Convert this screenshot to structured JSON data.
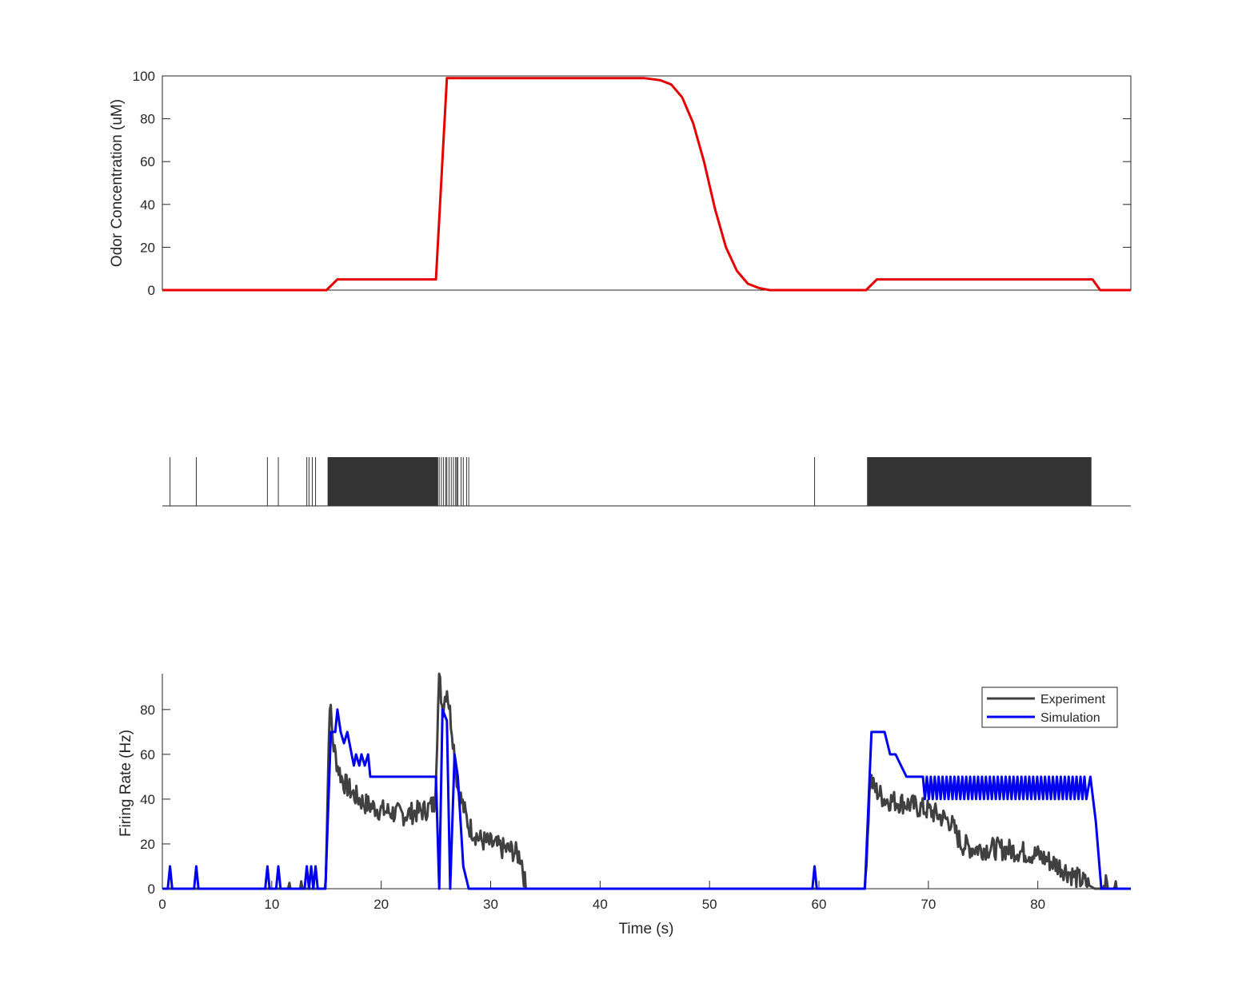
{
  "chart_data": [
    {
      "type": "line",
      "panel": "odor",
      "ylabel": "Odor Concentration (uM)",
      "xlabel": "",
      "xlim": [
        0,
        88.5
      ],
      "ylim": [
        0,
        100
      ],
      "yticks": [
        0,
        20,
        40,
        60,
        80,
        100
      ],
      "grid": false,
      "box": true,
      "colors": {
        "line": "#e60000"
      },
      "series": [
        {
          "x": [
            0,
            11.3,
            15.0,
            16.0,
            25.0,
            26.0,
            37.0,
            44.0,
            45.5,
            46.5,
            47.5,
            48.5,
            49.5,
            50.5,
            51.5,
            52.5,
            53.5,
            54.5,
            55.5,
            58.0,
            64.3,
            65.3,
            84.0,
            85.0,
            85.7,
            88.5
          ],
          "y": [
            0,
            0,
            0,
            5,
            5,
            99,
            99,
            99,
            98,
            96,
            90,
            78,
            60,
            38,
            20,
            9,
            3,
            1,
            0,
            0,
            0,
            5,
            5,
            5,
            0,
            0
          ]
        }
      ]
    },
    {
      "type": "raster",
      "panel": "spikes",
      "xlim": [
        0,
        88.5
      ],
      "colors": {
        "spike": "#333333"
      },
      "spike_times": [
        0.7,
        3.1,
        9.6,
        10.6,
        13.2,
        13.4,
        13.7,
        14.0,
        25.3,
        25.5,
        25.7,
        25.9,
        26.0,
        26.2,
        26.4,
        26.6,
        26.8,
        26.9,
        27.0,
        27.3,
        27.5,
        27.8,
        28.0,
        59.6
      ],
      "bursts": [
        [
          15.1,
          25.2
        ],
        [
          64.4,
          84.9
        ]
      ]
    },
    {
      "type": "line",
      "panel": "rate",
      "xlabel": "Time (s)",
      "ylabel": "Firing Rate (Hz)",
      "xlim": [
        0,
        88.5
      ],
      "ylim": [
        0,
        96
      ],
      "xticks": [
        0,
        10,
        20,
        30,
        40,
        50,
        60,
        70,
        80
      ],
      "yticks": [
        0,
        20,
        40,
        60,
        80
      ],
      "grid": false,
      "legend": "top-right",
      "series": [
        {
          "name": "Experiment",
          "color": "#404040",
          "x": [
            0,
            11.5,
            11.6,
            11.7,
            12.6,
            12.7,
            12.8,
            14.9,
            15.3,
            15.6,
            16.0,
            16.5,
            17.5,
            18.5,
            20.0,
            22.0,
            24.0,
            24.9,
            25.3,
            25.6,
            26.0,
            26.5,
            27.0,
            28.0,
            29.0,
            30.0,
            31.0,
            32.0,
            32.8,
            33.2,
            64.2,
            64.7,
            65.0,
            66.0,
            68.0,
            70.0,
            72.0,
            73.0,
            74.0,
            76.0,
            78.0,
            80.0,
            82.0,
            83.5,
            84.5,
            85.2,
            86.0,
            86.1,
            86.3,
            86.4,
            87.0,
            87.1,
            87.2,
            88.5
          ],
          "y": [
            0,
            0,
            3,
            0,
            0,
            3,
            0,
            0,
            84,
            65,
            55,
            48,
            42,
            38,
            35,
            33,
            35,
            38,
            95,
            80,
            90,
            70,
            45,
            28,
            22,
            20,
            18,
            17,
            14,
            0,
            0,
            50,
            45,
            40,
            38,
            35,
            30,
            20,
            18,
            18,
            17,
            15,
            10,
            5,
            2,
            0,
            0,
            3,
            3,
            0,
            0,
            3,
            0,
            0
          ],
          "noise": 5
        },
        {
          "name": "Simulation",
          "color": "#0000ee",
          "x": [
            0,
            0.5,
            0.7,
            0.9,
            2.9,
            3.1,
            3.3,
            9.4,
            9.6,
            9.8,
            10.4,
            10.6,
            10.8,
            13.0,
            13.2,
            13.4,
            13.6,
            13.8,
            14.0,
            14.2,
            14.9,
            15.4,
            15.8,
            16.0,
            16.3,
            16.6,
            16.9,
            17.3,
            17.5,
            17.7,
            18.0,
            18.2,
            18.5,
            18.8,
            19.0,
            24.0,
            25.0,
            25.3,
            25.6,
            26.0,
            26.3,
            26.7,
            27.0,
            27.5,
            28.0,
            28.4,
            59.4,
            59.6,
            59.8,
            64.2,
            64.8,
            66.0,
            66.5,
            67.0,
            67.5,
            68.0,
            84.8,
            85.3,
            85.8,
            88.5
          ],
          "y": [
            0,
            0,
            10,
            0,
            0,
            10,
            0,
            0,
            10,
            0,
            0,
            10,
            0,
            0,
            10,
            0,
            10,
            0,
            10,
            0,
            0,
            70,
            70,
            80,
            70,
            65,
            70,
            60,
            55,
            60,
            55,
            60,
            55,
            60,
            50,
            50,
            50,
            0,
            80,
            75,
            0,
            60,
            50,
            10,
            0,
            0,
            0,
            10,
            0,
            0,
            70,
            70,
            60,
            60,
            55,
            50,
            50,
            30,
            0,
            0
          ],
          "oscillation": {
            "range": [
              69.5,
              84.5
            ],
            "low": 40,
            "high": 50
          }
        }
      ]
    }
  ]
}
